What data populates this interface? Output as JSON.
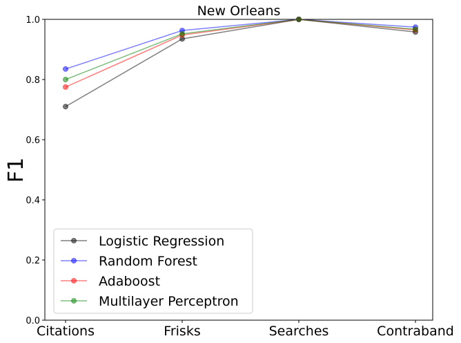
{
  "chart_data": {
    "type": "line",
    "title": "New Orleans",
    "xlabel": "",
    "ylabel": "F1",
    "categories": [
      "Citations",
      "Frisks",
      "Searches",
      "Contraband"
    ],
    "ylim": [
      0.0,
      1.0
    ],
    "yticks": [
      "0.0",
      "0.2",
      "0.4",
      "0.6",
      "0.8",
      "1.0"
    ],
    "grid": false,
    "legend_position": "bottom-left",
    "series": [
      {
        "name": "Logistic Regression",
        "color": "#000000",
        "values": [
          0.71,
          0.935,
          1.0,
          0.958
        ]
      },
      {
        "name": "Random Forest",
        "color": "#0000ff",
        "values": [
          0.835,
          0.963,
          1.0,
          0.974
        ]
      },
      {
        "name": "Adaboost",
        "color": "#ff0000",
        "values": [
          0.775,
          0.948,
          1.0,
          0.965
        ]
      },
      {
        "name": "Multilayer Perceptron",
        "color": "#008000",
        "values": [
          0.8,
          0.952,
          1.0,
          0.967
        ]
      }
    ]
  }
}
